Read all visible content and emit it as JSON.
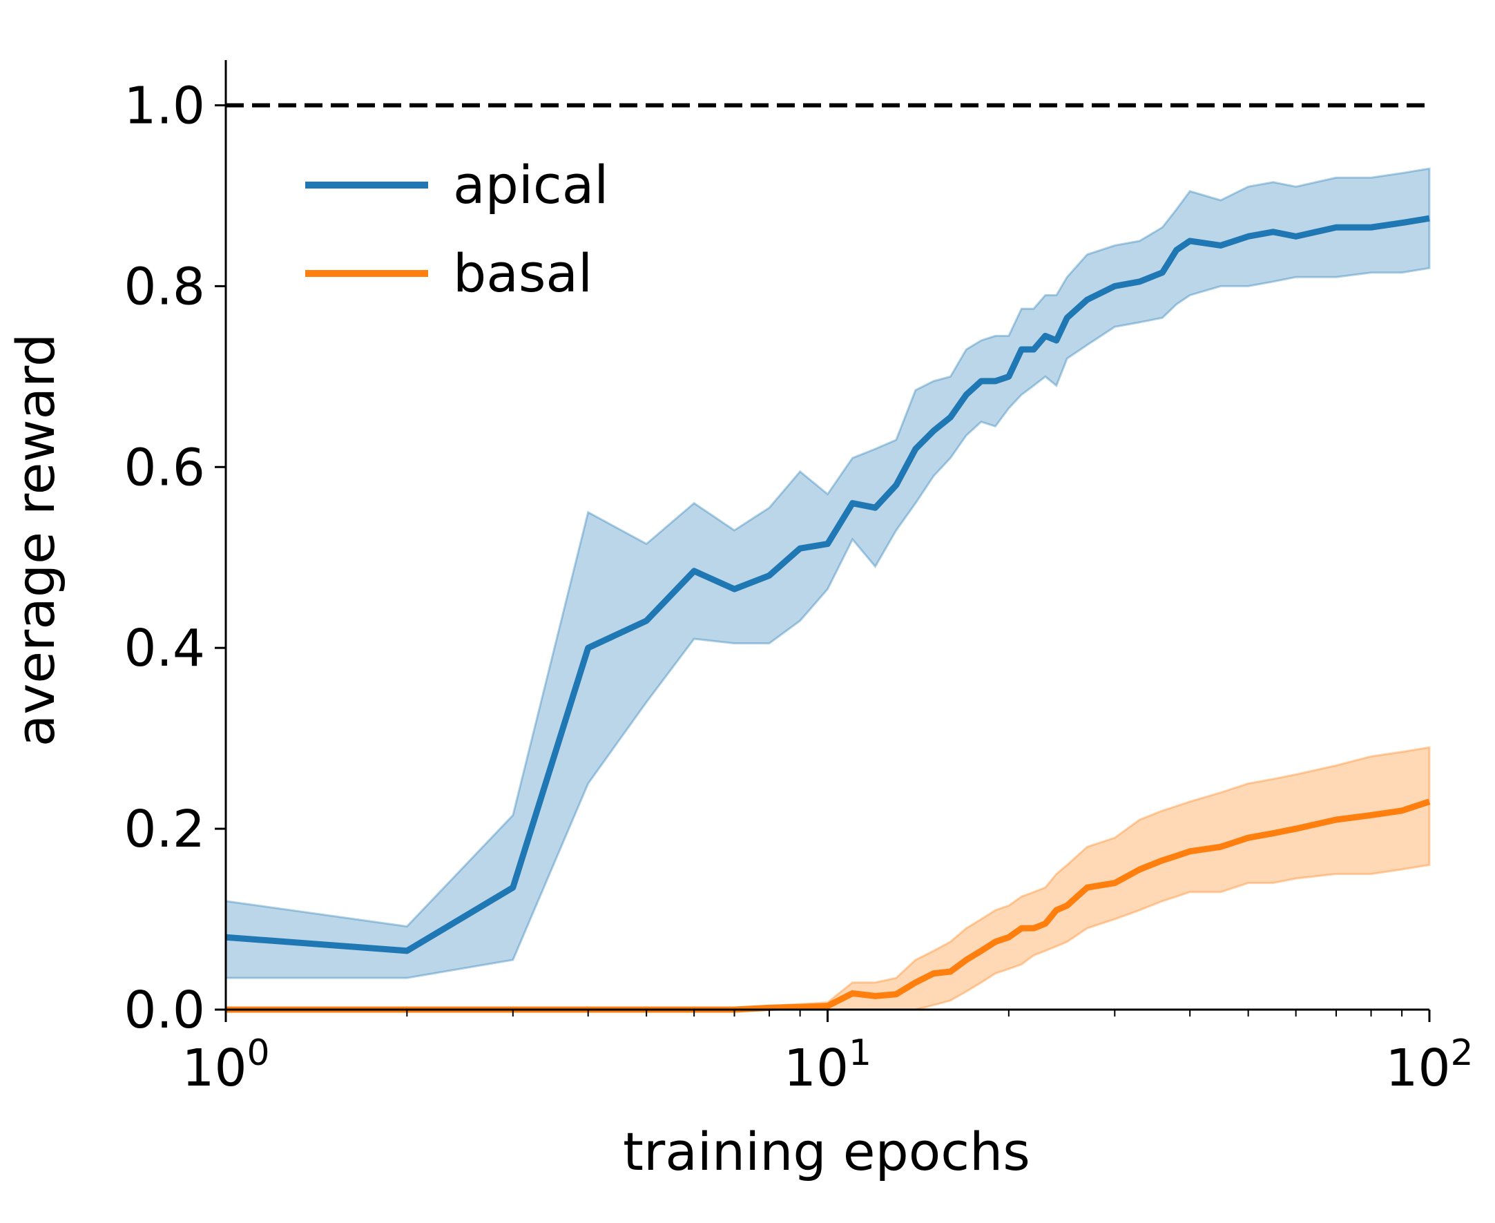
{
  "chart_data": {
    "type": "line",
    "title": "",
    "xlabel": "training epochs",
    "ylabel": "average reward",
    "xscale": "log",
    "xlim": [
      1,
      100
    ],
    "ylim": [
      0.0,
      1.05
    ],
    "grid": false,
    "legend_position": "top-left",
    "reference_line": {
      "y": 1.0,
      "style": "dashed",
      "color": "#000000"
    },
    "y_ticks": [
      {
        "value": 0.0,
        "label": "0.0"
      },
      {
        "value": 0.2,
        "label": "0.2"
      },
      {
        "value": 0.4,
        "label": "0.4"
      },
      {
        "value": 0.6,
        "label": "0.6"
      },
      {
        "value": 0.8,
        "label": "0.8"
      },
      {
        "value": 1.0,
        "label": "1.0"
      }
    ],
    "x_ticks": [
      {
        "value": 1,
        "base": "10",
        "exp": "0"
      },
      {
        "value": 10,
        "base": "10",
        "exp": "1"
      },
      {
        "value": 100,
        "base": "10",
        "exp": "2"
      }
    ],
    "series": [
      {
        "name": "apical",
        "color": "#1f77b4",
        "band_color": "#1f77b4",
        "x": [
          1,
          2,
          3,
          4,
          5,
          6,
          7,
          8,
          9,
          10,
          11,
          12,
          13,
          14,
          15,
          16,
          17,
          18,
          19,
          20,
          21,
          22,
          23,
          24,
          25,
          27,
          30,
          33,
          36,
          38,
          40,
          45,
          50,
          55,
          60,
          70,
          80,
          90,
          100
        ],
        "values": [
          0.08,
          0.065,
          0.135,
          0.4,
          0.43,
          0.485,
          0.465,
          0.48,
          0.51,
          0.515,
          0.56,
          0.555,
          0.58,
          0.62,
          0.64,
          0.655,
          0.68,
          0.695,
          0.695,
          0.7,
          0.73,
          0.73,
          0.745,
          0.74,
          0.765,
          0.785,
          0.8,
          0.805,
          0.815,
          0.84,
          0.85,
          0.845,
          0.855,
          0.86,
          0.855,
          0.865,
          0.865,
          0.87,
          0.875
        ],
        "lower": [
          0.035,
          0.035,
          0.055,
          0.25,
          0.34,
          0.41,
          0.405,
          0.405,
          0.43,
          0.465,
          0.52,
          0.49,
          0.53,
          0.56,
          0.59,
          0.61,
          0.635,
          0.65,
          0.645,
          0.665,
          0.68,
          0.69,
          0.7,
          0.69,
          0.72,
          0.735,
          0.755,
          0.76,
          0.765,
          0.78,
          0.79,
          0.8,
          0.8,
          0.805,
          0.81,
          0.81,
          0.815,
          0.815,
          0.82
        ],
        "upper": [
          0.12,
          0.092,
          0.215,
          0.55,
          0.515,
          0.56,
          0.53,
          0.555,
          0.595,
          0.57,
          0.61,
          0.62,
          0.63,
          0.685,
          0.695,
          0.7,
          0.73,
          0.74,
          0.745,
          0.745,
          0.775,
          0.775,
          0.79,
          0.79,
          0.81,
          0.835,
          0.845,
          0.85,
          0.865,
          0.885,
          0.905,
          0.895,
          0.91,
          0.915,
          0.91,
          0.92,
          0.92,
          0.925,
          0.93
        ]
      },
      {
        "name": "basal",
        "color": "#ff7f0e",
        "band_color": "#ff7f0e",
        "x": [
          1,
          2,
          3,
          4,
          5,
          6,
          7,
          8,
          9,
          10,
          11,
          12,
          13,
          14,
          15,
          16,
          17,
          18,
          19,
          20,
          21,
          22,
          23,
          24,
          25,
          27,
          30,
          33,
          36,
          38,
          40,
          45,
          50,
          55,
          60,
          70,
          80,
          90,
          100
        ],
        "values": [
          0.0,
          0.0,
          0.0,
          0.0,
          0.0,
          0.0,
          0.0,
          0.002,
          0.003,
          0.004,
          0.018,
          0.015,
          0.017,
          0.03,
          0.04,
          0.042,
          0.055,
          0.065,
          0.075,
          0.08,
          0.09,
          0.09,
          0.095,
          0.11,
          0.115,
          0.135,
          0.14,
          0.155,
          0.165,
          0.17,
          0.175,
          0.18,
          0.19,
          0.195,
          0.2,
          0.21,
          0.215,
          0.22,
          0.23
        ],
        "lower": [
          0.0,
          0.0,
          0.0,
          0.0,
          0.0,
          0.0,
          0.0,
          0.0,
          0.0,
          0.0,
          0.0,
          0.0,
          0.0,
          0.0,
          0.005,
          0.01,
          0.02,
          0.03,
          0.04,
          0.045,
          0.05,
          0.06,
          0.065,
          0.07,
          0.075,
          0.09,
          0.1,
          0.11,
          0.12,
          0.125,
          0.13,
          0.13,
          0.14,
          0.14,
          0.145,
          0.15,
          0.15,
          0.155,
          0.16
        ],
        "upper": [
          0.0,
          0.0,
          0.0,
          0.0,
          0.0,
          0.0,
          0.0,
          0.004,
          0.006,
          0.008,
          0.03,
          0.03,
          0.035,
          0.055,
          0.065,
          0.075,
          0.09,
          0.1,
          0.11,
          0.115,
          0.125,
          0.13,
          0.135,
          0.15,
          0.16,
          0.18,
          0.19,
          0.21,
          0.22,
          0.225,
          0.23,
          0.24,
          0.25,
          0.255,
          0.26,
          0.27,
          0.28,
          0.285,
          0.29
        ]
      }
    ]
  }
}
